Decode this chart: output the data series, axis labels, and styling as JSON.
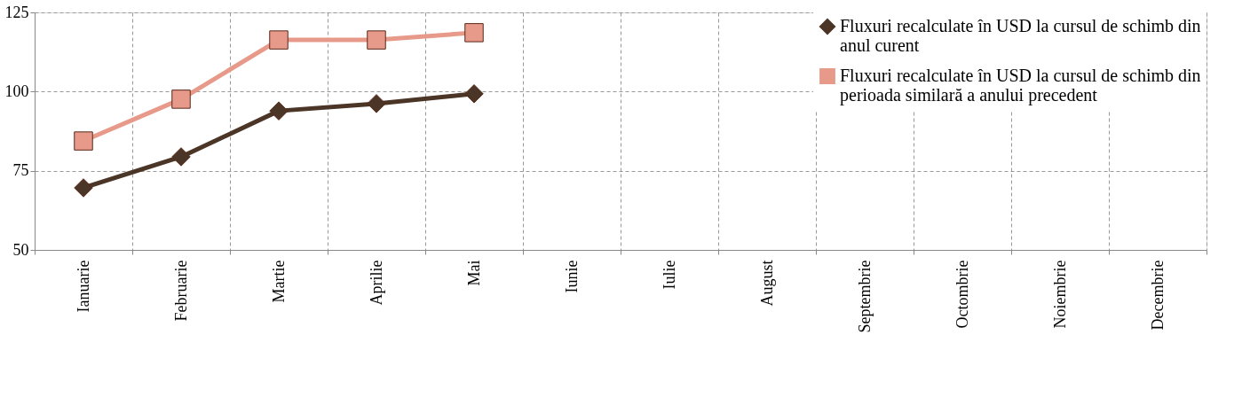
{
  "chart_data": {
    "type": "line",
    "categories": [
      "Ianuarie",
      "Februarie",
      "Martie",
      "Aprilie",
      "Mai",
      "Iunie",
      "Iulie",
      "August",
      "Septembrie",
      "Octombrie",
      "Noiembrie",
      "Decembrie"
    ],
    "series": [
      {
        "name": "Fluxuri recalculate în USD la cursul de schimb din anul curent",
        "color": "#4b3526",
        "marker": "diamond",
        "values": [
          69.6,
          79.4,
          93.9,
          96.2,
          99.3,
          null,
          null,
          null,
          null,
          null,
          null,
          null
        ]
      },
      {
        "name": "Fluxuri recalculate în USD la cursul de schimb din perioada similară a anului precedent",
        "color": "#e89a8a",
        "marker": "square",
        "values": [
          84.4,
          97.6,
          116.3,
          116.3,
          118.6,
          null,
          null,
          null,
          null,
          null,
          null,
          null
        ]
      }
    ],
    "ylim": [
      50,
      125
    ],
    "yticks": [
      50,
      75,
      100,
      125
    ],
    "grid": true,
    "legend": "top right",
    "line_style": "solid"
  }
}
